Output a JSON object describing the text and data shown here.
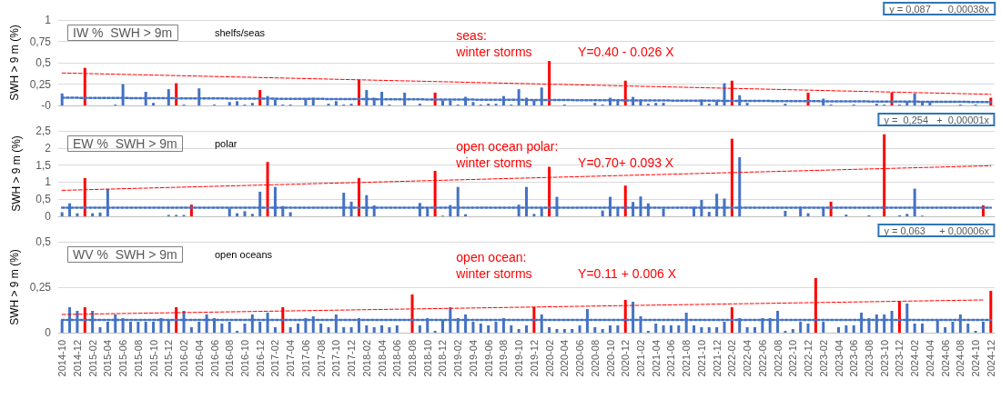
{
  "chart_data": [
    {
      "type": "bar",
      "title": "IW %  SWH > 9m",
      "subtitle": "shelfs/seas",
      "ylabel": "SWH > 9 m (%)",
      "annotations": [
        "seas:\nwinter storms",
        "Y=0.40 - 0.026 X",
        "y = 0,087   -  0,00038x"
      ],
      "categories": [
        "2014-10",
        null,
        "2014-12",
        null,
        "2015-02",
        null,
        "2015-04",
        null,
        "2015-06",
        null,
        "2015-08",
        null,
        "2015-10",
        null,
        "2015-12",
        null,
        "2016-02",
        null,
        "2016-04",
        null,
        "2016-06",
        null,
        "2016-08",
        null,
        "2016-10",
        null,
        "2016-12",
        null,
        "2017-02",
        null,
        "2017-04",
        null,
        "2017-06",
        null,
        "2017-08",
        null,
        "2017-10",
        null,
        "2017-12",
        null,
        "2018-02",
        null,
        "2018-04",
        null,
        "2018-06",
        null,
        "2018-08",
        null,
        "2018-10",
        null,
        "2018-12",
        null,
        "2019-02",
        null,
        "2019-04",
        null,
        "2019-06",
        null,
        "2019-08",
        null,
        "2019-10",
        null,
        "2019-12",
        null,
        "2020-02",
        null,
        "2020-04",
        null,
        "2020-06",
        null,
        "2020-08",
        null,
        "2020-10",
        null,
        "2020-12",
        null,
        "2021-02",
        null,
        "2021-04",
        null,
        "2021-06",
        null,
        "2021-08",
        null,
        "2021-10",
        null,
        "2021-12",
        null,
        "2022-02",
        null,
        "2022-04",
        null,
        "2022-06",
        null,
        "2022-08",
        null,
        "2022-10",
        null,
        "2022-12",
        null,
        "2023-02",
        null,
        "2023-04",
        null,
        "2023-06",
        null,
        "2023-08",
        null,
        "2023-10",
        null,
        "2023-12",
        null,
        "2024-02",
        null,
        "2024-04",
        null,
        "2024-06",
        null,
        "2024-08",
        null,
        "2024-10",
        null,
        "2024-12"
      ],
      "series": [
        {
          "color": "#4472c4",
          "values": [
            0.14,
            null,
            null,
            null,
            null,
            null,
            null,
            0.01,
            0.25,
            null,
            null,
            0.16,
            0.03,
            null,
            0.19,
            null,
            0.01,
            null,
            0.2,
            null,
            0.01,
            null,
            0.04,
            0.05,
            0.01,
            0.03,
            null,
            0.11,
            0.07,
            0.01,
            0.01,
            null,
            0.08,
            0.09,
            null,
            0.02,
            0.05,
            0.01,
            0.02,
            null,
            0.18,
            0.09,
            0.16,
            0.01,
            null,
            0.15,
            null,
            0.02,
            null,
            null,
            0.06,
            0.06,
            0.01,
            0.1,
            0.04,
            0.01,
            0.02,
            0.02,
            0.11,
            0.01,
            0.19,
            0.09,
            0.06,
            0.21,
            null,
            null,
            0.01,
            null,
            null,
            null,
            0.03,
            0.01,
            0.09,
            0.06,
            null,
            0.1,
            0.07,
            0.02,
            0.03,
            0.03,
            null,
            null,
            null,
            null,
            0.07,
            0.02,
            0.05,
            0.26,
            null,
            0.12,
            0.03,
            null,
            null,
            null,
            null,
            0.02,
            null,
            null,
            null,
            null,
            0.08,
            0.01,
            null,
            null,
            0.01,
            null,
            null,
            0.02,
            0.01,
            null,
            0.01,
            0.04,
            0.14,
            0.05,
            0.04,
            null,
            null,
            null,
            0.01,
            null,
            0.01,
            null,
            null
          ]
        },
        {
          "color": "#ff0000",
          "values": [
            null,
            null,
            null,
            0.44,
            null,
            null,
            null,
            null,
            null,
            null,
            null,
            null,
            null,
            null,
            null,
            0.26,
            null,
            null,
            null,
            null,
            null,
            null,
            null,
            null,
            null,
            null,
            0.18,
            null,
            null,
            null,
            null,
            null,
            null,
            null,
            null,
            null,
            null,
            null,
            null,
            0.3,
            null,
            null,
            null,
            null,
            null,
            null,
            null,
            null,
            null,
            0.15,
            null,
            null,
            null,
            null,
            null,
            null,
            null,
            null,
            null,
            null,
            null,
            null,
            null,
            null,
            0.52,
            null,
            null,
            null,
            null,
            null,
            null,
            null,
            null,
            null,
            0.29,
            null,
            null,
            null,
            null,
            null,
            null,
            null,
            null,
            null,
            null,
            null,
            null,
            null,
            0.29,
            null,
            null,
            null,
            null,
            null,
            null,
            null,
            null,
            null,
            0.15,
            null,
            null,
            null,
            null,
            null,
            null,
            null,
            null,
            null,
            null,
            0.15,
            null,
            null,
            null,
            null,
            null,
            null,
            null,
            null,
            null,
            null,
            null,
            null,
            0.09
          ]
        },
        {
          "type": "line",
          "color": "#ff0000",
          "line_style": "dashed",
          "values": [
            0.38,
            null,
            null,
            null,
            null,
            null,
            null,
            null,
            null,
            null,
            null,
            null,
            null,
            null,
            null,
            null,
            null,
            null,
            null,
            null,
            null,
            null,
            null,
            null,
            null,
            null,
            null,
            null,
            null,
            null,
            null,
            null,
            null,
            null,
            null,
            null,
            null,
            null,
            null,
            null,
            null,
            null,
            null,
            null,
            null,
            null,
            null,
            null,
            null,
            null,
            null,
            null,
            null,
            null,
            null,
            null,
            null,
            null,
            null,
            null,
            null,
            null,
            null,
            null,
            null,
            null,
            null,
            null,
            null,
            null,
            null,
            null,
            null,
            null,
            null,
            null,
            null,
            null,
            null,
            null,
            null,
            null,
            null,
            null,
            null,
            null,
            null,
            null,
            null,
            null,
            null,
            null,
            null,
            null,
            null,
            null,
            null,
            null,
            null,
            null,
            null,
            null,
            null,
            null,
            null,
            null,
            null,
            null,
            null,
            null,
            null,
            null,
            null,
            null,
            null,
            null,
            null,
            null,
            null,
            null,
            null,
            null,
            0.13
          ]
        },
        {
          "type": "line",
          "color": "#4472c4",
          "line_style": "dotted",
          "values": [
            0.09,
            null,
            null,
            null,
            null,
            null,
            null,
            null,
            null,
            null,
            null,
            null,
            null,
            null,
            null,
            null,
            null,
            null,
            null,
            null,
            null,
            null,
            null,
            null,
            null,
            null,
            null,
            null,
            null,
            null,
            null,
            null,
            null,
            null,
            null,
            null,
            null,
            null,
            null,
            null,
            null,
            null,
            null,
            null,
            null,
            null,
            null,
            null,
            null,
            null,
            null,
            null,
            null,
            null,
            null,
            null,
            null,
            null,
            null,
            null,
            null,
            null,
            null,
            null,
            null,
            null,
            null,
            null,
            null,
            null,
            null,
            null,
            null,
            null,
            null,
            null,
            null,
            null,
            null,
            null,
            null,
            null,
            null,
            null,
            null,
            null,
            null,
            null,
            null,
            null,
            null,
            null,
            null,
            null,
            null,
            null,
            null,
            null,
            null,
            null,
            null,
            null,
            null,
            null,
            null,
            null,
            null,
            null,
            null,
            null,
            null,
            null,
            null,
            null,
            null,
            null,
            null,
            null,
            null,
            null,
            null,
            null,
            0.04
          ]
        }
      ],
      "ylim": [
        0,
        1
      ],
      "yticks": [
        {
          "value": 0,
          "label": "-0"
        },
        {
          "value": 0.25,
          "label": "0,25"
        },
        {
          "value": 0.5,
          "label": "0,5"
        },
        {
          "value": 0.75,
          "label": "0,75"
        },
        1
      ],
      "grid": "y",
      "tick_labels": "y"
    },
    {
      "type": "bar",
      "title": "EW %  SWH > 9m",
      "subtitle": "polar",
      "ylabel": "SWH > 9 m (%)",
      "annotations": [
        "open ocean polar:\nwinter storms",
        "Y=0.70+ 0.093 X",
        "y =  0,254   +  0,00001x"
      ],
      "categories": [
        "2014-10",
        null,
        "2014-12",
        null,
        "2015-02",
        null,
        "2015-04",
        null,
        "2015-06",
        null,
        "2015-08",
        null,
        "2015-10",
        null,
        "2015-12",
        null,
        "2016-02",
        null,
        "2016-04",
        null,
        "2016-06",
        null,
        "2016-08",
        null,
        "2016-10",
        null,
        "2016-12",
        null,
        "2017-02",
        null,
        "2017-04",
        null,
        "2017-06",
        null,
        "2017-08",
        null,
        "2017-10",
        null,
        "2017-12",
        null,
        "2018-02",
        null,
        "2018-04",
        null,
        "2018-06",
        null,
        "2018-08",
        null,
        "2018-10",
        null,
        "2018-12",
        null,
        "2019-02",
        null,
        "2019-04",
        null,
        "2019-06",
        null,
        "2019-08",
        null,
        "2019-10",
        null,
        "2019-12",
        null,
        "2020-02",
        null,
        "2020-04",
        null,
        "2020-06",
        null,
        "2020-08",
        null,
        "2020-10",
        null,
        "2020-12",
        null,
        "2021-02",
        null,
        "2021-04",
        null,
        "2021-06",
        null,
        "2021-08",
        null,
        "2021-10",
        null,
        "2021-12",
        null,
        "2022-02",
        null,
        "2022-04",
        null,
        "2022-06",
        null,
        "2022-08",
        null,
        "2022-10",
        null,
        "2022-12",
        null,
        "2023-02",
        null,
        "2023-04",
        null,
        "2023-06",
        null,
        "2023-08",
        null,
        "2023-10",
        null,
        "2023-12",
        null,
        "2024-02",
        null,
        "2024-04",
        null,
        "2024-06",
        null,
        "2024-08",
        null,
        "2024-10",
        null,
        "2024-12"
      ],
      "series": [
        {
          "color": "#4472c4",
          "values": [
            0.12,
            0.38,
            0.09,
            null,
            0.09,
            0.11,
            0.8,
            null,
            null,
            null,
            null,
            null,
            null,
            null,
            0.04,
            0.04,
            0.04,
            null,
            null,
            null,
            null,
            null,
            0.23,
            0.09,
            0.15,
            0.07,
            0.72,
            null,
            0.86,
            0.3,
            0.12,
            null,
            null,
            null,
            null,
            null,
            null,
            0.69,
            0.43,
            null,
            0.62,
            0.32,
            null,
            null,
            null,
            null,
            null,
            0.39,
            0.25,
            null,
            0.02,
            0.33,
            0.86,
            0.06,
            null,
            null,
            null,
            null,
            null,
            null,
            0.34,
            0.86,
            0.07,
            0.24,
            null,
            0.57,
            null,
            null,
            null,
            null,
            null,
            0.17,
            0.57,
            0.24,
            null,
            0.42,
            0.58,
            0.38,
            null,
            0.22,
            null,
            null,
            null,
            0.28,
            0.48,
            0.13,
            0.66,
            0.52,
            null,
            1.73,
            null,
            null,
            null,
            null,
            null,
            0.16,
            null,
            0.28,
            0.09,
            null,
            0.24,
            null,
            null,
            0.05,
            null,
            null,
            0.03,
            null,
            null,
            null,
            0.03,
            0.07,
            0.81,
            0.02,
            null,
            null,
            null,
            null,
            null,
            null,
            null,
            null,
            null
          ]
        },
        {
          "color": "#ff0000",
          "values": [
            null,
            null,
            null,
            1.12,
            null,
            null,
            null,
            null,
            null,
            null,
            null,
            null,
            null,
            null,
            null,
            null,
            null,
            0.34,
            null,
            null,
            null,
            null,
            null,
            null,
            null,
            null,
            null,
            1.59,
            null,
            null,
            null,
            null,
            null,
            null,
            null,
            null,
            null,
            null,
            null,
            1.12,
            null,
            null,
            null,
            null,
            null,
            null,
            null,
            null,
            null,
            1.33,
            null,
            null,
            null,
            null,
            null,
            null,
            null,
            null,
            null,
            null,
            null,
            null,
            null,
            null,
            1.45,
            null,
            null,
            null,
            null,
            null,
            null,
            null,
            null,
            null,
            0.9,
            null,
            null,
            null,
            null,
            null,
            null,
            null,
            null,
            null,
            null,
            null,
            null,
            null,
            2.27,
            null,
            null,
            null,
            null,
            null,
            null,
            null,
            null,
            null,
            null,
            null,
            null,
            0.43,
            null,
            null,
            null,
            null,
            null,
            null,
            2.4,
            null,
            null,
            null,
            null,
            null,
            null,
            null,
            null,
            null,
            null,
            null,
            null,
            0.32,
            null
          ]
        },
        {
          "type": "line",
          "color": "#ff0000",
          "line_style": "dashed",
          "values": [
            0.76,
            null,
            null,
            null,
            null,
            null,
            null,
            null,
            null,
            null,
            null,
            null,
            null,
            null,
            null,
            null,
            null,
            null,
            null,
            null,
            null,
            null,
            null,
            null,
            null,
            null,
            null,
            null,
            null,
            null,
            null,
            null,
            null,
            null,
            null,
            null,
            null,
            null,
            null,
            null,
            null,
            null,
            null,
            null,
            null,
            null,
            null,
            null,
            null,
            null,
            null,
            null,
            null,
            null,
            null,
            null,
            null,
            null,
            null,
            null,
            null,
            null,
            null,
            null,
            null,
            null,
            null,
            null,
            null,
            null,
            null,
            null,
            null,
            null,
            null,
            null,
            null,
            null,
            null,
            null,
            null,
            null,
            null,
            null,
            null,
            null,
            null,
            null,
            null,
            null,
            null,
            null,
            null,
            null,
            null,
            null,
            null,
            null,
            null,
            null,
            null,
            null,
            null,
            null,
            null,
            null,
            null,
            null,
            null,
            null,
            null,
            null,
            null,
            null,
            null,
            null,
            null,
            null,
            null,
            null,
            null,
            null,
            1.48
          ]
        },
        {
          "type": "line",
          "color": "#4472c4",
          "line_style": "dotted",
          "values": [
            0.25,
            null,
            null,
            null,
            null,
            null,
            null,
            null,
            null,
            null,
            null,
            null,
            null,
            null,
            null,
            null,
            null,
            null,
            null,
            null,
            null,
            null,
            null,
            null,
            null,
            null,
            null,
            null,
            null,
            null,
            null,
            null,
            null,
            null,
            null,
            null,
            null,
            null,
            null,
            null,
            null,
            null,
            null,
            null,
            null,
            null,
            null,
            null,
            null,
            null,
            null,
            null,
            null,
            null,
            null,
            null,
            null,
            null,
            null,
            null,
            null,
            null,
            null,
            null,
            null,
            null,
            null,
            null,
            null,
            null,
            null,
            null,
            null,
            null,
            null,
            null,
            null,
            null,
            null,
            null,
            null,
            null,
            null,
            null,
            null,
            null,
            null,
            null,
            null,
            null,
            null,
            null,
            null,
            null,
            null,
            null,
            null,
            null,
            null,
            null,
            null,
            null,
            null,
            null,
            null,
            null,
            null,
            null,
            null,
            null,
            null,
            null,
            null,
            null,
            null,
            null,
            null,
            null,
            null,
            null,
            null,
            null,
            0.25
          ]
        }
      ],
      "ylim": [
        0,
        2.5
      ],
      "yticks": [
        0,
        {
          "value": 0.5,
          "label": "0,5"
        },
        1,
        {
          "value": 1.5,
          "label": "1,5"
        },
        2,
        {
          "value": 2.5,
          "label": "2,5"
        }
      ],
      "grid": "y",
      "tick_labels": "y"
    },
    {
      "type": "bar",
      "title": "WV %  SWH > 9m",
      "subtitle": "open oceans",
      "ylabel": "SWH > 9 m (%)",
      "annotations": [
        "open ocean:\nwinter storms",
        "Y=0.11 + 0.006 X",
        "y = 0,063     + 0,00006x"
      ],
      "categories": [
        "2014-10",
        null,
        "2014-12",
        null,
        "2015-02",
        null,
        "2015-04",
        null,
        "2015-06",
        null,
        "2015-08",
        null,
        "2015-10",
        null,
        "2015-12",
        null,
        "2016-02",
        null,
        "2016-04",
        null,
        "2016-06",
        null,
        "2016-08",
        null,
        "2016-10",
        null,
        "2016-12",
        null,
        "2017-02",
        null,
        "2017-04",
        null,
        "2017-06",
        null,
        "2017-08",
        null,
        "2017-10",
        null,
        "2017-12",
        null,
        "2018-02",
        null,
        "2018-04",
        null,
        "2018-06",
        null,
        "2018-08",
        null,
        "2018-10",
        null,
        "2018-12",
        null,
        "2019-02",
        null,
        "2019-04",
        null,
        "2019-06",
        null,
        "2019-08",
        null,
        "2019-10",
        null,
        "2019-12",
        null,
        "2020-02",
        null,
        "2020-04",
        null,
        "2020-06",
        null,
        "2020-08",
        null,
        "2020-10",
        null,
        "2020-12",
        null,
        "2021-02",
        null,
        "2021-04",
        null,
        "2021-06",
        null,
        "2021-08",
        null,
        "2021-10",
        null,
        "2021-12",
        null,
        "2022-02",
        null,
        "2022-04",
        null,
        "2022-06",
        null,
        "2022-08",
        null,
        "2022-10",
        null,
        "2022-12",
        null,
        "2023-02",
        null,
        "2023-04",
        null,
        "2023-06",
        null,
        "2023-08",
        null,
        "2023-10",
        null,
        "2023-12",
        null,
        "2024-02",
        null,
        "2024-04",
        null,
        "2024-06",
        null,
        "2024-08",
        null,
        "2024-10",
        null,
        "2024-12"
      ],
      "series": [
        {
          "color": "#4472c4",
          "values": [
            0.07,
            0.14,
            0.12,
            null,
            0.12,
            0.03,
            0.06,
            0.1,
            0.08,
            0.06,
            0.06,
            0.06,
            0.06,
            0.08,
            0.07,
            null,
            0.12,
            0.03,
            0.06,
            0.1,
            0.08,
            0.05,
            0.06,
            0.01,
            0.05,
            0.1,
            0.06,
            0.11,
            0.03,
            null,
            0.03,
            0.05,
            0.08,
            0.09,
            0.05,
            0.03,
            0.1,
            0.03,
            0.03,
            0.08,
            0.04,
            0.03,
            0.04,
            0.03,
            0.04,
            null,
            null,
            0.04,
            0.08,
            0.01,
            0.07,
            0.14,
            0.08,
            0.1,
            0.06,
            0.05,
            0.04,
            0.06,
            0.08,
            0.04,
            0.02,
            0.04,
            null,
            0.1,
            0.03,
            0.02,
            0.02,
            0.02,
            0.04,
            0.13,
            0.03,
            0.02,
            0.04,
            0.04,
            null,
            0.17,
            0.09,
            0.01,
            0.05,
            0.04,
            0.04,
            0.04,
            0.11,
            0.04,
            0.03,
            0.03,
            0.03,
            0.06,
            null,
            0.08,
            0.03,
            0.03,
            0.08,
            0.08,
            0.12,
            0.01,
            0.02,
            0.06,
            0.05,
            null,
            0.06,
            null,
            0.03,
            0.04,
            0.04,
            0.11,
            0.08,
            0.1,
            0.1,
            0.12,
            null,
            0.16,
            0.05,
            0.05,
            null,
            0.07,
            0.03,
            0.06,
            0.1,
            0.05,
            0.01,
            0.06,
            null
          ]
        },
        {
          "color": "#ff0000",
          "values": [
            null,
            null,
            null,
            0.14,
            null,
            null,
            null,
            null,
            null,
            null,
            null,
            null,
            null,
            null,
            null,
            0.14,
            null,
            null,
            null,
            null,
            null,
            null,
            null,
            null,
            null,
            null,
            null,
            null,
            null,
            0.14,
            null,
            null,
            null,
            null,
            null,
            null,
            null,
            null,
            null,
            null,
            null,
            null,
            null,
            null,
            null,
            null,
            0.21,
            null,
            null,
            null,
            null,
            null,
            null,
            null,
            null,
            null,
            null,
            null,
            null,
            null,
            null,
            null,
            0.14,
            null,
            null,
            null,
            null,
            null,
            null,
            null,
            null,
            null,
            null,
            null,
            0.18,
            null,
            null,
            null,
            null,
            null,
            null,
            null,
            null,
            null,
            null,
            null,
            null,
            null,
            0.14,
            null,
            null,
            null,
            null,
            null,
            null,
            null,
            null,
            null,
            null,
            0.3,
            null,
            null,
            null,
            null,
            null,
            null,
            null,
            null,
            null,
            null,
            0.17,
            null,
            null,
            null,
            null,
            null,
            null,
            null,
            null,
            null,
            null,
            null,
            0.23
          ]
        },
        {
          "type": "line",
          "color": "#ff0000",
          "line_style": "dashed",
          "values": [
            0.1,
            null,
            null,
            null,
            null,
            null,
            null,
            null,
            null,
            null,
            null,
            null,
            null,
            null,
            null,
            null,
            null,
            null,
            null,
            null,
            null,
            null,
            null,
            null,
            null,
            null,
            null,
            null,
            null,
            null,
            null,
            null,
            null,
            null,
            null,
            null,
            null,
            null,
            null,
            null,
            null,
            null,
            null,
            null,
            null,
            null,
            null,
            null,
            null,
            null,
            null,
            null,
            null,
            null,
            null,
            null,
            null,
            null,
            null,
            null,
            null,
            null,
            null,
            null,
            null,
            null,
            null,
            null,
            null,
            null,
            null,
            null,
            null,
            null,
            null,
            null,
            null,
            null,
            null,
            null,
            null,
            null,
            null,
            null,
            null,
            null,
            null,
            null,
            null,
            null,
            null,
            null,
            null,
            null,
            null,
            null,
            null,
            null,
            null,
            null,
            null,
            null,
            null,
            null,
            null,
            null,
            null,
            null,
            null,
            null,
            null,
            null,
            null,
            null,
            null,
            null,
            null,
            null,
            null,
            null,
            null,
            0.18,
            null
          ]
        },
        {
          "type": "line",
          "color": "#4472c4",
          "line_style": "dotted",
          "values": [
            0.07,
            null,
            null,
            null,
            null,
            null,
            null,
            null,
            null,
            null,
            null,
            null,
            null,
            null,
            null,
            null,
            null,
            null,
            null,
            null,
            null,
            null,
            null,
            null,
            null,
            null,
            null,
            null,
            null,
            null,
            null,
            null,
            null,
            null,
            null,
            null,
            null,
            null,
            null,
            null,
            null,
            null,
            null,
            null,
            null,
            null,
            null,
            null,
            null,
            null,
            null,
            null,
            null,
            null,
            null,
            null,
            null,
            null,
            null,
            null,
            null,
            null,
            null,
            null,
            null,
            null,
            null,
            null,
            null,
            null,
            null,
            null,
            null,
            null,
            null,
            null,
            null,
            null,
            null,
            null,
            null,
            null,
            null,
            null,
            null,
            null,
            null,
            null,
            null,
            null,
            null,
            null,
            null,
            null,
            null,
            null,
            null,
            null,
            null,
            null,
            null,
            null,
            null,
            null,
            null,
            null,
            null,
            null,
            null,
            null,
            null,
            null,
            null,
            null,
            null,
            null,
            null,
            null,
            null,
            null,
            null,
            null,
            0.07
          ]
        }
      ],
      "ylim": [
        0,
        0.5
      ],
      "yticks": [
        0,
        {
          "value": 0.25,
          "label": "0,25"
        },
        {
          "value": 0.5,
          "label": "0,5"
        }
      ],
      "grid": "y"
    }
  ]
}
